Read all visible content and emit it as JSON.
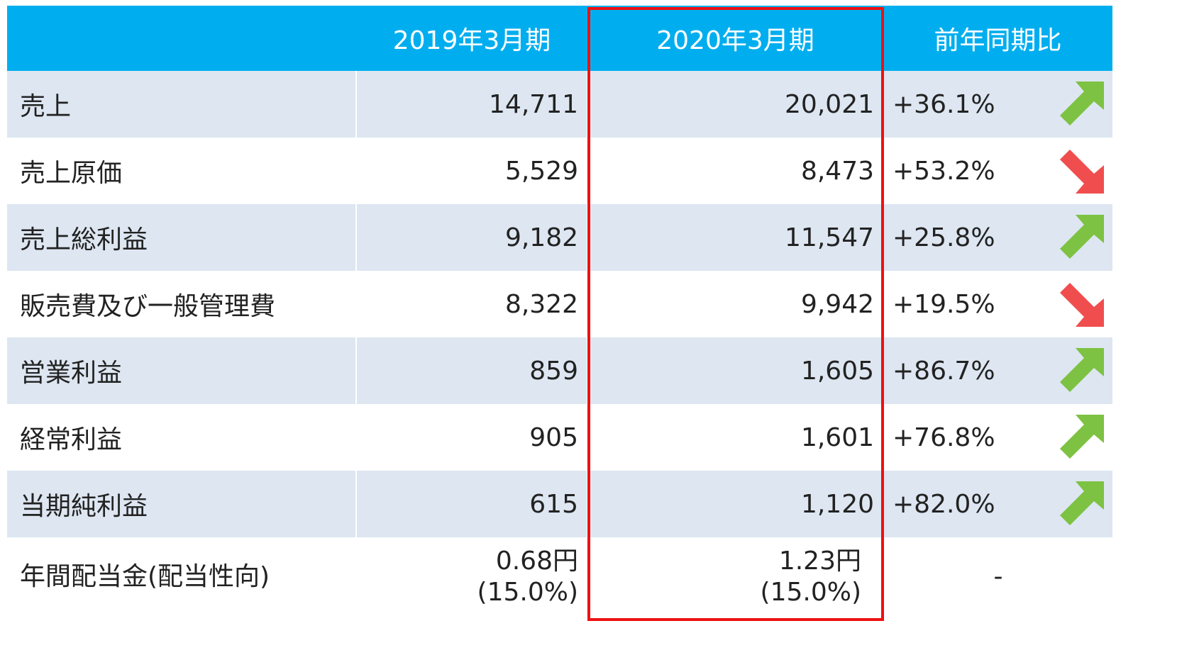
{
  "table": {
    "columns": [
      "2019年3月期",
      "2020年3月期",
      "前年同期比"
    ],
    "rows": [
      {
        "label": "売上",
        "fy2019": "14,711",
        "fy2020": "20,021",
        "change": "+36.1%"
      },
      {
        "label": "売上原価",
        "fy2019": "5,529",
        "fy2020": "8,473",
        "change": "+53.2%"
      },
      {
        "label": "売上総利益",
        "fy2019": "9,182",
        "fy2020": "11,547",
        "change": "+25.8%"
      },
      {
        "label": "販売費及び一般管理費",
        "fy2019": "8,322",
        "fy2020": "9,942",
        "change": "+19.5%"
      },
      {
        "label": "営業利益",
        "fy2019": "859",
        "fy2020": "1,605",
        "change": "+86.7%"
      },
      {
        "label": "経常利益",
        "fy2019": "905",
        "fy2020": "1,601",
        "change": "+76.8%"
      },
      {
        "label": "当期純利益",
        "fy2019": "615",
        "fy2020": "1,120",
        "change": "+82.0%"
      },
      {
        "label": "年間配当金(配当性向)",
        "fy2019": [
          "0.68円",
          "(15.0%)"
        ],
        "fy2020": [
          "1.23円",
          "(15.0%)"
        ],
        "change": "-"
      }
    ]
  }
}
